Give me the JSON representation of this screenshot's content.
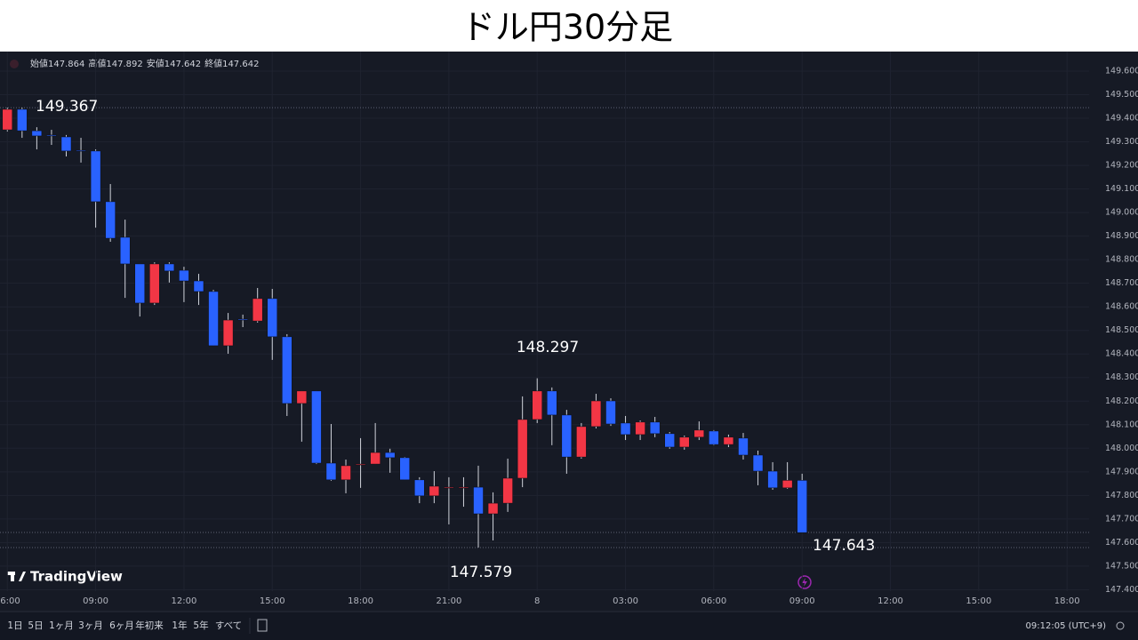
{
  "chart_data": {
    "type": "candlestick",
    "title": "ドル円30分足",
    "ohlc_labels": [
      "始値",
      "高値",
      "安値",
      "終値"
    ],
    "categories": [
      "06:00",
      null,
      null,
      null,
      null,
      null,
      "09:00",
      null,
      null,
      null,
      null,
      null,
      "12:00",
      null,
      null,
      null,
      null,
      null,
      "15:00",
      null,
      null,
      null,
      null,
      null,
      "18:00",
      null,
      null,
      null,
      null,
      null,
      "21:00",
      null,
      null,
      null,
      null,
      null,
      "8",
      null,
      null,
      null,
      null,
      null,
      "03:00",
      null,
      null,
      null,
      null,
      null,
      "06:00",
      null,
      null,
      null,
      null,
      null,
      "09:00",
      null,
      null,
      null,
      null,
      null,
      "12:00",
      null,
      null,
      null,
      null,
      null,
      "15:00",
      null,
      null,
      null,
      null,
      null,
      "18:00",
      null
    ],
    "open": [
      149.351,
      149.438,
      149.347,
      149.329,
      149.321,
      149.264,
      149.261,
      149.046,
      148.895,
      148.782,
      148.616,
      148.782,
      148.755,
      148.71,
      148.665,
      148.435,
      148.548,
      148.54,
      148.635,
      148.473,
      148.19,
      148.243,
      147.937,
      147.866,
      147.93,
      147.933,
      147.982,
      147.96,
      147.866,
      147.798,
      147.835,
      147.832,
      147.835,
      147.722,
      147.767,
      147.873,
      148.122,
      148.243,
      148.141,
      147.963,
      148.092,
      148.201,
      148.107,
      148.058,
      148.111,
      148.062,
      148.005,
      148.047,
      148.073,
      148.016,
      148.043,
      147.971,
      147.903,
      147.832,
      147.864,
      null,
      null,
      null,
      null,
      null,
      null,
      null,
      null,
      null,
      null,
      null,
      null,
      null,
      null,
      null,
      null,
      null,
      null,
      null
    ],
    "high": [
      149.445,
      149.445,
      149.362,
      149.351,
      149.329,
      149.317,
      149.268,
      149.121,
      148.97,
      148.782,
      148.789,
      148.789,
      148.77,
      148.74,
      148.672,
      148.574,
      148.567,
      148.68,
      148.676,
      148.484,
      148.243,
      148.243,
      148.103,
      147.952,
      148.043,
      148.107,
      147.998,
      147.963,
      147.877,
      147.903,
      147.877,
      147.877,
      147.926,
      147.813,
      147.956,
      148.22,
      148.297,
      148.258,
      148.163,
      148.107,
      148.231,
      148.212,
      148.137,
      148.118,
      148.133,
      148.069,
      148.054,
      148.114,
      148.077,
      148.058,
      148.065,
      147.99,
      147.941,
      147.941,
      147.892,
      null,
      null,
      null,
      null,
      null,
      null,
      null,
      null,
      null,
      null,
      null,
      null,
      null,
      null,
      null,
      null,
      null,
      null,
      null
    ],
    "low": [
      149.344,
      149.317,
      149.268,
      149.287,
      149.238,
      149.212,
      148.936,
      148.876,
      148.638,
      148.559,
      148.608,
      148.703,
      148.62,
      148.608,
      148.435,
      148.401,
      148.514,
      148.533,
      148.375,
      148.137,
      148.028,
      147.933,
      147.862,
      147.809,
      147.832,
      147.933,
      147.896,
      147.866,
      147.767,
      147.767,
      147.677,
      147.752,
      147.579,
      147.609,
      147.73,
      147.835,
      148.107,
      148.013,
      147.892,
      147.956,
      148.084,
      148.095,
      148.035,
      148.035,
      148.047,
      147.998,
      147.994,
      148.035,
      148.013,
      148.005,
      147.952,
      147.843,
      147.824,
      147.828,
      147.642,
      null,
      null,
      null,
      null,
      null,
      null,
      null,
      null,
      null,
      null,
      null,
      null,
      null,
      null,
      null,
      null,
      null,
      null,
      null
    ],
    "close": [
      149.438,
      149.347,
      149.325,
      149.325,
      149.261,
      149.261,
      149.046,
      148.891,
      148.782,
      148.616,
      148.782,
      148.752,
      148.71,
      148.665,
      148.435,
      148.544,
      148.544,
      148.635,
      148.473,
      148.19,
      148.243,
      147.937,
      147.866,
      147.926,
      147.933,
      147.982,
      147.96,
      147.866,
      147.798,
      147.839,
      147.835,
      147.835,
      147.722,
      147.767,
      147.873,
      148.122,
      148.243,
      148.141,
      147.963,
      148.092,
      148.201,
      148.103,
      148.058,
      148.111,
      148.062,
      148.005,
      148.047,
      148.077,
      148.016,
      148.047,
      147.971,
      147.903,
      147.832,
      147.864,
      147.642,
      null,
      null,
      null,
      null,
      null,
      null,
      null,
      null,
      null,
      null,
      null,
      null,
      null,
      null,
      null,
      null,
      null,
      null,
      null
    ],
    "up_color": "#f23645",
    "down_color": "#2962ff",
    "ylim": [
      147.394,
      149.683
    ],
    "yticks": [
      {
        "value": 147.4,
        "label": "147.400"
      },
      {
        "value": 147.5,
        "label": "147.500"
      },
      {
        "value": 147.6,
        "label": "147.600"
      },
      {
        "value": 147.7,
        "label": "147.700"
      },
      {
        "value": 147.8,
        "label": "147.800"
      },
      {
        "value": 147.9,
        "label": "147.900"
      },
      {
        "value": 148.0,
        "label": "148.000"
      },
      {
        "value": 148.1,
        "label": "148.100"
      },
      {
        "value": 148.2,
        "label": "148.200"
      },
      {
        "value": 148.3,
        "label": "148.300"
      },
      {
        "value": 148.4,
        "label": "148.400"
      },
      {
        "value": 148.5,
        "label": "148.500"
      },
      {
        "value": 148.6,
        "label": "148.600"
      },
      {
        "value": 148.7,
        "label": "148.700"
      },
      {
        "value": 148.8,
        "label": "148.800"
      },
      {
        "value": 148.9,
        "label": "148.900"
      },
      {
        "value": 149.0,
        "label": "149.000"
      },
      {
        "value": 149.1,
        "label": "149.100"
      },
      {
        "value": 149.2,
        "label": "149.200"
      },
      {
        "value": 149.3,
        "label": "149.300"
      },
      {
        "value": 149.4,
        "label": "149.400"
      },
      {
        "value": 149.5,
        "label": "149.500"
      },
      {
        "value": 149.6,
        "label": "149.600"
      }
    ],
    "reference_lines": [
      149.445,
      147.643,
      147.579
    ],
    "annotations": [
      "149.367",
      "148.297",
      "147.579",
      "147.643"
    ],
    "grid": true
  },
  "logo": "TradingView",
  "toolbar": {
    "ranges": [
      "1日",
      "5日",
      "1ヶ月",
      "3ヶ月",
      "6ヶ月",
      "年初来",
      "1年",
      "5年",
      "すべて"
    ],
    "clock": "09:12:05 (UTC+9)"
  }
}
